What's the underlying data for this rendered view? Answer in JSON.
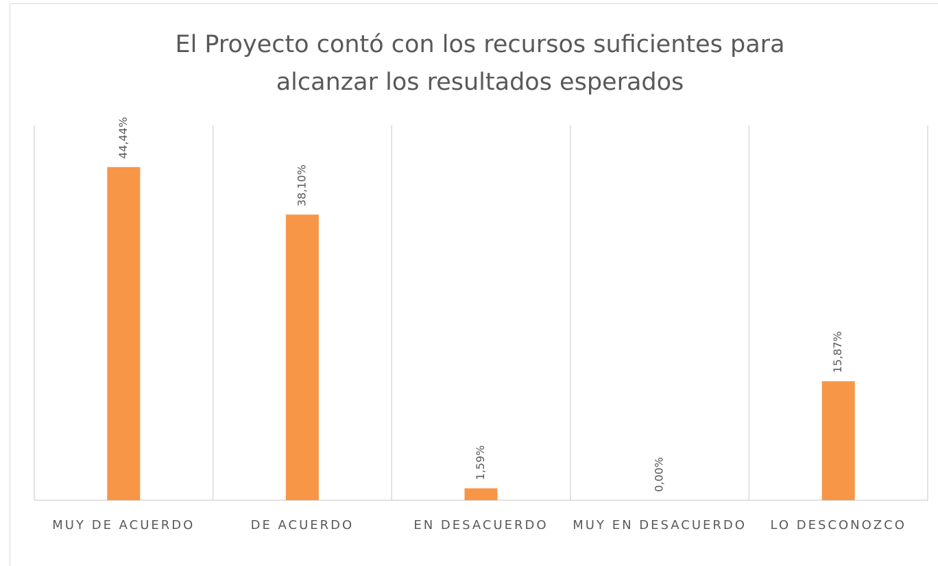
{
  "chart_data": {
    "type": "bar",
    "title": "El Proyecto contó con los recursos suficientes para alcanzar los resultados esperados",
    "categories": [
      "MUY DE ACUERDO",
      "DE ACUERDO",
      "EN DESACUERDO",
      "MUY EN DESACUERDO",
      "LO DESCONOZCO"
    ],
    "values": [
      44.44,
      38.1,
      1.59,
      0,
      15.87
    ],
    "value_labels": [
      "44,44%",
      "38,10%",
      "1,59%",
      "0,00%",
      "15,87%"
    ],
    "color": "#f79646",
    "ylim": [
      0,
      50
    ]
  }
}
